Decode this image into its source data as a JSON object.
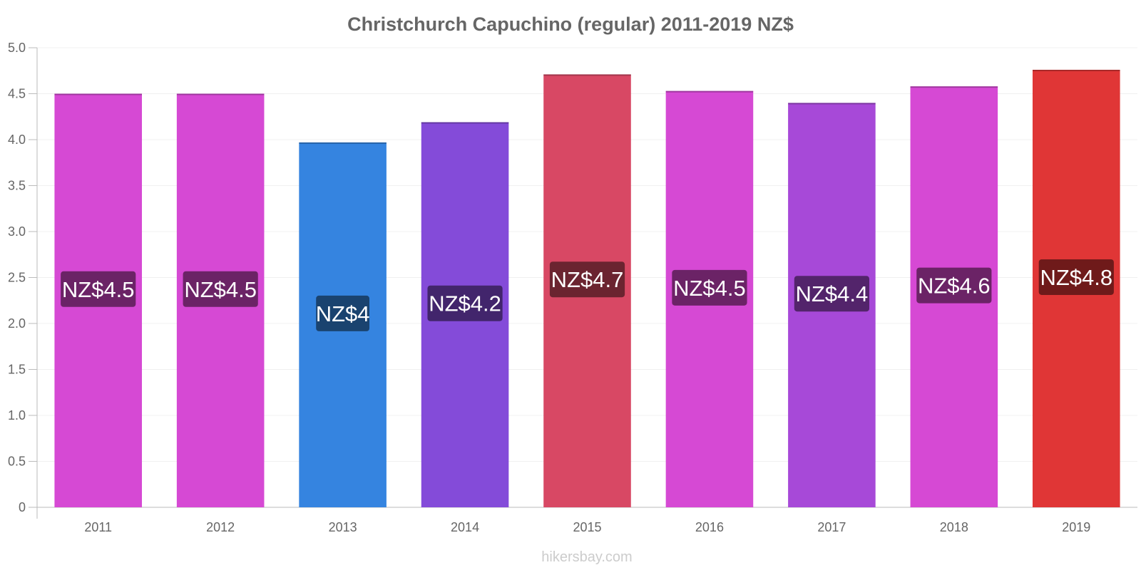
{
  "chart_data": {
    "type": "bar",
    "title": "Christchurch Capuchino (regular) 2011-2019 NZ$",
    "xlabel": "",
    "ylabel": "",
    "ylim": [
      0,
      5
    ],
    "yticks": [
      {
        "value": 0,
        "label": "0"
      },
      {
        "value": 0.5,
        "label": "0.5"
      },
      {
        "value": 1,
        "label": "1.0"
      },
      {
        "value": 1.5,
        "label": "1.5"
      },
      {
        "value": 2,
        "label": "2.0"
      },
      {
        "value": 2.5,
        "label": "2.5"
      },
      {
        "value": 3,
        "label": "3.0"
      },
      {
        "value": 3.5,
        "label": "3.5"
      },
      {
        "value": 4,
        "label": "4.0"
      },
      {
        "value": 4.5,
        "label": "4.5"
      },
      {
        "value": 5,
        "label": "5.0"
      }
    ],
    "categories": [
      "2011",
      "2012",
      "2013",
      "2014",
      "2015",
      "2016",
      "2017",
      "2018",
      "2019"
    ],
    "values": [
      4.5,
      4.5,
      3.97,
      4.19,
      4.71,
      4.53,
      4.4,
      4.58,
      4.76
    ],
    "data_labels": [
      "NZ$4.5",
      "NZ$4.5",
      "NZ$4",
      "NZ$4.2",
      "NZ$4.7",
      "NZ$4.5",
      "NZ$4.4",
      "NZ$4.6",
      "NZ$4.8"
    ],
    "bar_colors": [
      "#d649d4",
      "#d649d4",
      "#3584e0",
      "#844bd9",
      "#d84864",
      "#d649d4",
      "#a749d8",
      "#d649d4",
      "#e03636"
    ],
    "label_colors": [
      "#6b2366",
      "#6b2366",
      "#1a436f",
      "#42256c",
      "#6b2430",
      "#6b2366",
      "#53246b",
      "#6b2366",
      "#6f1a1a"
    ],
    "grid": true,
    "legend": "none"
  },
  "watermark": "hikersbay.com"
}
